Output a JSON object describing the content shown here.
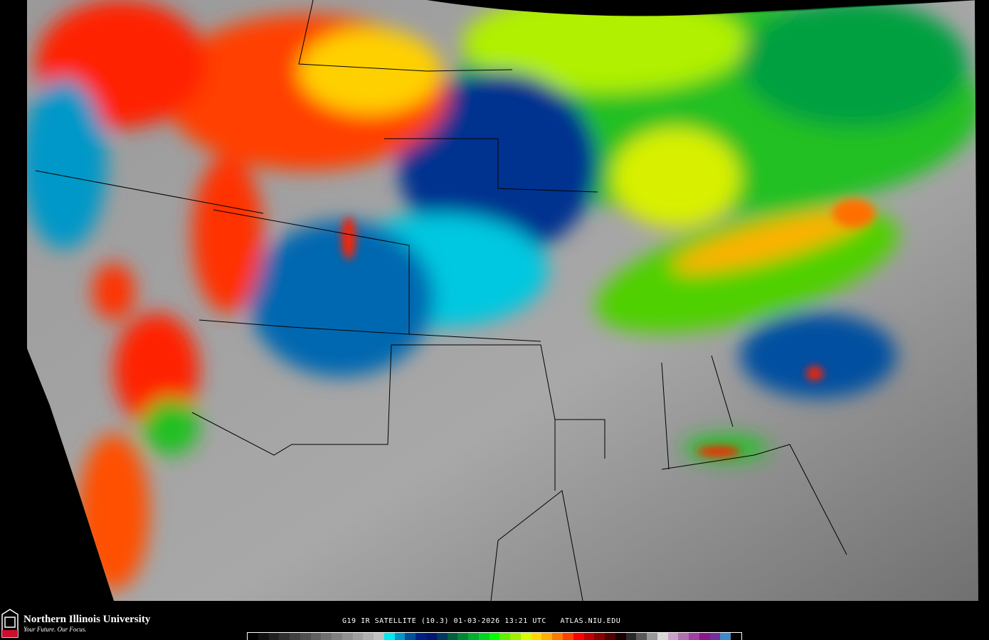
{
  "footer": {
    "university_name": "Northern Illinois University",
    "tagline": "Your Future. Our Focus.",
    "logo_text": "NIU",
    "caption": "G19 IR SATELLITE (10.3) 01-03-2026 13:21 UTC   ATLAS.NIU.EDU"
  },
  "colors": {
    "background": "#000000",
    "clear_sky": "#a0a0a0",
    "cold_cloud_low": "#00e0f0",
    "cold_cloud_mid": "#003090",
    "green": "#20d020",
    "yellow": "#e0f000",
    "red": "#ff2000",
    "niu_red": "#c8102e"
  },
  "colorbar": [
    "#000000",
    "#101010",
    "#202020",
    "#303030",
    "#404040",
    "#505050",
    "#606060",
    "#707070",
    "#808080",
    "#909090",
    "#a0a0a0",
    "#b0b0b0",
    "#c0c0c0",
    "#00e8f0",
    "#0098c8",
    "#0050a0",
    "#002088",
    "#001870",
    "#003860",
    "#006040",
    "#008838",
    "#00b030",
    "#00d820",
    "#00ff00",
    "#60f000",
    "#a0f000",
    "#d8ff00",
    "#ffd800",
    "#ffb000",
    "#ff7800",
    "#ff4000",
    "#ff0000",
    "#c00000",
    "#880000",
    "#500000",
    "#180000",
    "#282828",
    "#585858",
    "#989898",
    "#d8d8d8",
    "#c8a0c8",
    "#b070b0",
    "#a040a0",
    "#881888",
    "#7030a0",
    "#4088c8",
    "#000000"
  ]
}
